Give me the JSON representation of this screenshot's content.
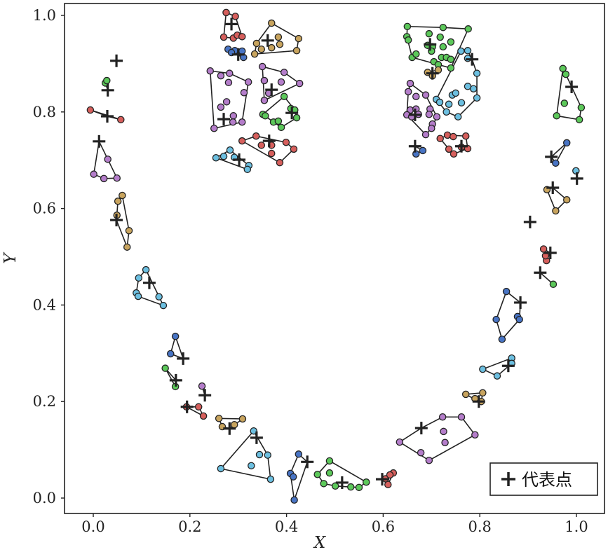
{
  "chart_data": {
    "type": "scatter",
    "xlabel": "X",
    "ylabel": "Y",
    "xlim": [
      -0.06,
      1.06
    ],
    "ylim": [
      -0.03,
      1.03
    ],
    "xticks": [
      "0.0",
      "0.2",
      "0.4",
      "0.6",
      "0.8",
      "1.0"
    ],
    "yticks": [
      "0.0",
      "0.2",
      "0.4",
      "0.6",
      "0.8",
      "1.0"
    ],
    "grid": false,
    "legend": {
      "position": "bottom-right",
      "entries": [
        "代表点"
      ],
      "marker": "+"
    },
    "colors": {
      "red": "#d65f5c",
      "blue": "#4874c4",
      "tan": "#c8a45e",
      "purple": "#b47dca",
      "green": "#5cc85a",
      "cyan": "#6cbfe0",
      "edge": "#222222"
    },
    "clusters": [
      {
        "color": "red",
        "rep": [
          0.286,
          0.982
        ],
        "points": [
          [
            0.275,
            1.006
          ],
          [
            0.294,
            0.998
          ],
          [
            0.27,
            0.955
          ],
          [
            0.29,
            0.953
          ],
          [
            0.298,
            0.959
          ],
          [
            0.308,
            0.956
          ]
        ]
      },
      {
        "color": "blue",
        "rep": [
          0.3,
          0.919
        ],
        "points": [
          [
            0.279,
            0.93
          ],
          [
            0.293,
            0.927
          ],
          [
            0.308,
            0.926
          ],
          [
            0.311,
            0.913
          ],
          [
            0.286,
            0.923
          ]
        ]
      },
      {
        "color": "tan",
        "rep": [
          0.361,
          0.948
        ],
        "points": [
          [
            0.369,
            0.984
          ],
          [
            0.425,
            0.952
          ],
          [
            0.421,
            0.927
          ],
          [
            0.334,
            0.92
          ],
          [
            0.338,
            0.942
          ],
          [
            0.348,
            0.93
          ],
          [
            0.369,
            0.933
          ],
          [
            0.383,
            0.955
          ],
          [
            0.386,
            0.94
          ]
        ]
      },
      {
        "color": "purple",
        "rep": [
          0.27,
          0.785
        ],
        "points": [
          [
            0.242,
            0.885
          ],
          [
            0.264,
            0.875
          ],
          [
            0.282,
            0.88
          ],
          [
            0.321,
            0.862
          ],
          [
            0.312,
            0.84
          ],
          [
            0.28,
            0.861
          ],
          [
            0.276,
            0.821
          ],
          [
            0.264,
            0.81
          ],
          [
            0.29,
            0.792
          ],
          [
            0.289,
            0.779
          ],
          [
            0.308,
            0.779
          ],
          [
            0.25,
            0.766
          ]
        ]
      },
      {
        "color": "purple",
        "rep": [
          0.369,
          0.846
        ],
        "points": [
          [
            0.35,
            0.894
          ],
          [
            0.395,
            0.882
          ],
          [
            0.427,
            0.859
          ],
          [
            0.354,
            0.865
          ],
          [
            0.389,
            0.862
          ],
          [
            0.354,
            0.824
          ],
          [
            0.363,
            0.839
          ]
        ]
      },
      {
        "color": "green",
        "rep": [
          0.411,
          0.798
        ],
        "points": [
          [
            0.395,
            0.832
          ],
          [
            0.351,
            0.795
          ],
          [
            0.356,
            0.792
          ],
          [
            0.373,
            0.779
          ],
          [
            0.383,
            0.781
          ],
          [
            0.389,
            0.768
          ],
          [
            0.409,
            0.807
          ],
          [
            0.417,
            0.804
          ],
          [
            0.421,
            0.788
          ]
        ]
      },
      {
        "color": "red",
        "rep": [
          0.364,
          0.74
        ],
        "points": [
          [
            0.308,
            0.74
          ],
          [
            0.337,
            0.75
          ],
          [
            0.348,
            0.731
          ],
          [
            0.369,
            0.731
          ],
          [
            0.399,
            0.737
          ],
          [
            0.415,
            0.723
          ],
          [
            0.369,
            0.714
          ],
          [
            0.386,
            0.695
          ]
        ]
      },
      {
        "color": "cyan",
        "rep": [
          0.302,
          0.701
        ],
        "points": [
          [
            0.254,
            0.705
          ],
          [
            0.27,
            0.708
          ],
          [
            0.283,
            0.721
          ],
          [
            0.322,
            0.689
          ],
          [
            0.319,
            0.681
          ],
          [
            0.292,
            0.706
          ]
        ]
      },
      {
        "color": "green",
        "rep": [
          0.697,
          0.94
        ],
        "points": [
          [
            0.65,
            0.977
          ],
          [
            0.724,
            0.975
          ],
          [
            0.776,
            0.972
          ],
          [
            0.649,
            0.956
          ],
          [
            0.652,
            0.949
          ],
          [
            0.66,
            0.913
          ],
          [
            0.668,
            0.92
          ],
          [
            0.695,
            0.962
          ],
          [
            0.692,
            0.938
          ],
          [
            0.702,
            0.935
          ],
          [
            0.718,
            0.955
          ],
          [
            0.724,
            0.935
          ],
          [
            0.74,
            0.945
          ],
          [
            0.7,
            0.926
          ],
          [
            0.721,
            0.913
          ],
          [
            0.731,
            0.913
          ],
          [
            0.74,
            0.909
          ],
          [
            0.705,
            0.904
          ],
          [
            0.714,
            0.898
          ],
          [
            0.74,
            0.891
          ]
        ]
      },
      {
        "color": "tan",
        "rep": [
          0.702,
          0.88
        ],
        "points": [
          [
            0.692,
            0.882
          ],
          [
            0.714,
            0.887
          ],
          [
            0.702,
            0.875
          ]
        ]
      },
      {
        "color": "cyan",
        "rep": [
          0.784,
          0.909
        ],
        "points": [
          [
            0.761,
            0.926
          ],
          [
            0.775,
            0.927
          ],
          [
            0.775,
            0.911
          ],
          [
            0.794,
            0.88
          ],
          [
            0.775,
            0.853
          ],
          [
            0.787,
            0.848
          ],
          [
            0.794,
            0.829
          ],
          [
            0.755,
            0.79
          ],
          [
            0.743,
            0.835
          ],
          [
            0.75,
            0.839
          ],
          [
            0.762,
            0.819
          ],
          [
            0.731,
            0.8
          ],
          [
            0.736,
            0.816
          ],
          [
            0.71,
            0.826
          ],
          [
            0.717,
            0.82
          ]
        ]
      },
      {
        "color": "purple",
        "rep": [
          0.666,
          0.794
        ],
        "points": [
          [
            0.656,
            0.859
          ],
          [
            0.652,
            0.842
          ],
          [
            0.668,
            0.832
          ],
          [
            0.688,
            0.835
          ],
          [
            0.656,
            0.804
          ],
          [
            0.649,
            0.794
          ],
          [
            0.668,
            0.806
          ],
          [
            0.697,
            0.806
          ],
          [
            0.695,
            0.795
          ],
          [
            0.711,
            0.79
          ],
          [
            0.702,
            0.775
          ],
          [
            0.7,
            0.766
          ],
          [
            0.688,
            0.753
          ],
          [
            0.673,
            0.795
          ],
          [
            0.659,
            0.79
          ]
        ]
      },
      {
        "color": "blue",
        "rep": [
          0.666,
          0.729
        ],
        "points": [
          [
            0.668,
            0.713
          ],
          [
            0.682,
            0.72
          ]
        ]
      },
      {
        "color": "red",
        "rep": [
          0.762,
          0.729
        ],
        "points": [
          [
            0.718,
            0.745
          ],
          [
            0.733,
            0.752
          ],
          [
            0.745,
            0.749
          ],
          [
            0.771,
            0.75
          ],
          [
            0.775,
            0.724
          ],
          [
            0.736,
            0.723
          ],
          [
            0.746,
            0.713
          ],
          [
            0.762,
            0.727
          ]
        ]
      },
      {
        "color": "red",
        "rep": [
          0.048,
          0.906
        ],
        "points": []
      },
      {
        "color": "green",
        "rep": [
          0.03,
          0.845
        ],
        "points": [
          [
            0.025,
            0.86
          ],
          [
            0.028,
            0.865
          ]
        ]
      },
      {
        "color": "red",
        "rep": [
          0.029,
          0.791
        ],
        "points": [
          [
            -0.006,
            0.804
          ],
          [
            0.057,
            0.784
          ]
        ]
      },
      {
        "color": "purple",
        "rep": [
          0.012,
          0.739
        ],
        "points": [
          [
            0.001,
            0.671
          ],
          [
            0.03,
            0.702
          ],
          [
            0.022,
            0.662
          ],
          [
            0.049,
            0.663
          ]
        ]
      },
      {
        "color": "tan",
        "rep": [
          0.048,
          0.576
        ],
        "points": [
          [
            0.06,
            0.627
          ],
          [
            0.051,
            0.615
          ],
          [
            0.049,
            0.586
          ],
          [
            0.074,
            0.554
          ],
          [
            0.07,
            0.52
          ]
        ]
      },
      {
        "color": "cyan",
        "rep": [
          0.116,
          0.446
        ],
        "points": [
          [
            0.109,
            0.473
          ],
          [
            0.094,
            0.456
          ],
          [
            0.089,
            0.425
          ],
          [
            0.093,
            0.418
          ],
          [
            0.136,
            0.417
          ],
          [
            0.145,
            0.399
          ]
        ]
      },
      {
        "color": "blue",
        "rep": [
          0.186,
          0.289
        ],
        "points": [
          [
            0.17,
            0.335
          ],
          [
            0.16,
            0.299
          ]
        ]
      },
      {
        "color": "green",
        "rep": [
          0.171,
          0.244
        ],
        "points": [
          [
            0.149,
            0.269
          ],
          [
            0.17,
            0.231
          ]
        ]
      },
      {
        "color": "red",
        "rep": [
          0.194,
          0.189
        ],
        "points": [
          [
            0.193,
            0.189
          ],
          [
            0.218,
            0.189
          ],
          [
            0.228,
            0.17
          ]
        ]
      },
      {
        "color": "purple",
        "rep": [
          0.231,
          0.213
        ],
        "points": [
          [
            0.225,
            0.232
          ]
        ]
      },
      {
        "color": "tan",
        "rep": [
          0.282,
          0.144
        ],
        "points": [
          [
            0.26,
            0.165
          ],
          [
            0.309,
            0.164
          ],
          [
            0.267,
            0.148
          ],
          [
            0.292,
            0.152
          ]
        ]
      },
      {
        "color": "cyan",
        "rep": [
          0.338,
          0.125
        ],
        "points": [
          [
            0.332,
            0.139
          ],
          [
            0.264,
            0.061
          ],
          [
            0.327,
            0.067
          ],
          [
            0.344,
            0.09
          ],
          [
            0.367,
            0.039
          ],
          [
            0.361,
            0.089
          ]
        ]
      },
      {
        "color": "blue",
        "rep": [
          0.443,
          0.075
        ],
        "points": [
          [
            0.425,
            0.091
          ],
          [
            0.408,
            0.051
          ],
          [
            0.416,
            -0.004
          ],
          [
            0.414,
            0.044
          ]
        ]
      },
      {
        "color": "green",
        "rep": [
          0.515,
          0.032
        ],
        "points": [
          [
            0.489,
            0.077
          ],
          [
            0.489,
            0.052
          ],
          [
            0.464,
            0.049
          ],
          [
            0.477,
            0.03
          ],
          [
            0.501,
            0.025
          ],
          [
            0.533,
            0.023
          ],
          [
            0.565,
            0.033
          ],
          [
            0.55,
            0.022
          ]
        ]
      },
      {
        "color": "red",
        "rep": [
          0.598,
          0.039
        ],
        "points": [
          [
            0.621,
            0.052
          ],
          [
            0.61,
            0.028
          ],
          [
            0.605,
            0.04
          ],
          [
            0.614,
            0.048
          ]
        ]
      },
      {
        "color": "purple",
        "rep": [
          0.679,
          0.145
        ],
        "points": [
          [
            0.634,
            0.116
          ],
          [
            0.723,
            0.168
          ],
          [
            0.762,
            0.168
          ],
          [
            0.79,
            0.131
          ],
          [
            0.695,
            0.078
          ],
          [
            0.678,
            0.094
          ],
          [
            0.725,
            0.138
          ],
          [
            0.728,
            0.115
          ]
        ]
      },
      {
        "color": "tan",
        "rep": [
          0.798,
          0.2
        ],
        "points": [
          [
            0.771,
            0.215
          ],
          [
            0.806,
            0.218
          ],
          [
            0.803,
            0.2
          ],
          [
            0.79,
            0.206
          ]
        ]
      },
      {
        "color": "cyan",
        "rep": [
          0.859,
          0.274
        ],
        "points": [
          [
            0.806,
            0.267
          ],
          [
            0.836,
            0.253
          ],
          [
            0.866,
            0.29
          ],
          [
            0.866,
            0.279
          ]
        ]
      },
      {
        "color": "blue",
        "rep": [
          0.884,
          0.405
        ],
        "points": [
          [
            0.855,
            0.428
          ],
          [
            0.834,
            0.37
          ],
          [
            0.846,
            0.329
          ],
          [
            0.878,
            0.376
          ],
          [
            0.882,
            0.37
          ]
        ]
      },
      {
        "color": "green",
        "rep": [
          0.925,
          0.467
        ],
        "points": [
          [
            0.952,
            0.443
          ]
        ]
      },
      {
        "color": "red",
        "rep": [
          0.946,
          0.508
        ],
        "points": [
          [
            0.932,
            0.516
          ],
          [
            0.938,
            0.492
          ],
          [
            0.936,
            0.502
          ]
        ]
      },
      {
        "color": "red",
        "rep": [
          0.904,
          0.572
        ],
        "points": []
      },
      {
        "color": "tan",
        "rep": [
          0.951,
          0.643
        ],
        "points": [
          [
            0.939,
            0.639
          ],
          [
            0.98,
            0.618
          ],
          [
            0.957,
            0.595
          ]
        ]
      },
      {
        "color": "blue",
        "rep": [
          0.948,
          0.707
        ],
        "points": [
          [
            0.98,
            0.736
          ],
          [
            0.957,
            0.694
          ]
        ]
      },
      {
        "color": "cyan",
        "rep": [
          1.001,
          0.662
        ],
        "points": [
          [
            0.999,
            0.678
          ]
        ]
      },
      {
        "color": "green",
        "rep": [
          0.99,
          0.852
        ],
        "points": [
          [
            0.972,
            0.89
          ],
          [
            0.978,
            0.878
          ],
          [
            1.01,
            0.809
          ],
          [
            1.006,
            0.784
          ],
          [
            0.975,
            0.818
          ],
          [
            0.959,
            0.792
          ]
        ]
      }
    ]
  }
}
